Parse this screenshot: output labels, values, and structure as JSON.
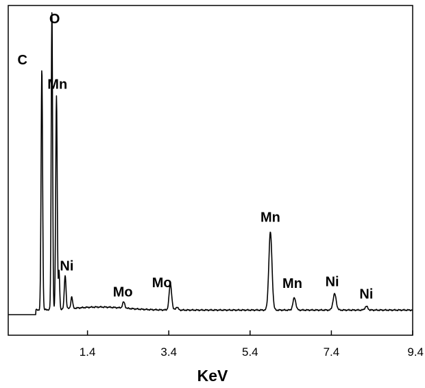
{
  "chart_data": {
    "type": "line",
    "title": "",
    "xlabel": "KeV",
    "ylabel": "",
    "xlim": [
      -0.55,
      9.4
    ],
    "ylim": [
      0,
      100
    ],
    "x_ticks": [
      {
        "value": 1.4,
        "label": "1.4"
      },
      {
        "value": 3.4,
        "label": "3.4"
      },
      {
        "value": 5.4,
        "label": "5.4"
      },
      {
        "value": 7.4,
        "label": "7.4"
      },
      {
        "value": 9.4,
        "label": "9.4"
      }
    ],
    "grid": false,
    "legend": "none",
    "series": [
      {
        "baseline": 1.5,
        "peaks": [
          {
            "x": 0.277,
            "height": 79.0,
            "width": 0.026
          },
          {
            "x": 0.525,
            "height": 98.0,
            "width": 0.024
          },
          {
            "x": 0.637,
            "height": 70.0,
            "width": 0.026
          },
          {
            "x": 0.7,
            "height": 12.5,
            "width": 0.022
          },
          {
            "x": 0.851,
            "height": 11.0,
            "width": 0.03
          },
          {
            "x": 1.012,
            "height": 3.8,
            "width": 0.03
          },
          {
            "x": 2.29,
            "height": 2.0,
            "width": 0.04
          },
          {
            "x": 3.44,
            "height": 8.5,
            "width": 0.045
          },
          {
            "x": 3.6,
            "height": 1.0,
            "width": 0.04
          },
          {
            "x": 5.9,
            "height": 25.5,
            "width": 0.055
          },
          {
            "x": 6.49,
            "height": 4.0,
            "width": 0.05
          },
          {
            "x": 7.48,
            "height": 5.3,
            "width": 0.055
          },
          {
            "x": 8.26,
            "height": 1.2,
            "width": 0.05
          }
        ],
        "color": "#000000"
      }
    ],
    "annotations": [
      {
        "text": "C",
        "x": -0.2,
        "y": 82.0
      },
      {
        "text": "O",
        "x": 0.59,
        "y": 95.5
      },
      {
        "text": "Mn",
        "x": 0.66,
        "y": 74.0
      },
      {
        "text": "Ni",
        "x": 0.89,
        "y": 14.5
      },
      {
        "text": "Mo",
        "x": 2.27,
        "y": 6.0
      },
      {
        "text": "Mo",
        "x": 3.23,
        "y": 9.0
      },
      {
        "text": "Mn",
        "x": 5.9,
        "y": 30.5
      },
      {
        "text": "Mn",
        "x": 6.44,
        "y": 8.8
      },
      {
        "text": "Ni",
        "x": 7.42,
        "y": 9.3
      },
      {
        "text": "Ni",
        "x": 8.26,
        "y": 5.3
      }
    ]
  }
}
